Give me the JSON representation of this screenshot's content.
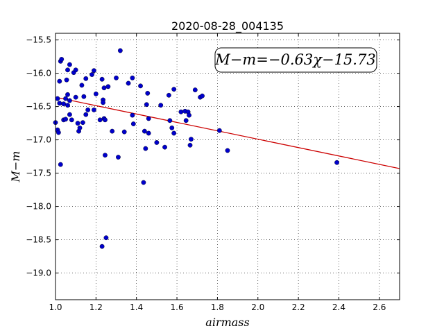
{
  "chart_data": {
    "type": "scatter",
    "title": "2020-08-28_004135",
    "xlabel": "airmass",
    "ylabel": "M−m",
    "xlim": [
      1.0,
      2.7
    ],
    "ylim": [
      -19.4,
      -15.4
    ],
    "y_inverted": true,
    "grid": true,
    "xticks": [
      1.0,
      1.2,
      1.4,
      1.6,
      1.8,
      2.0,
      2.2,
      2.4,
      2.6
    ],
    "xtick_labels": [
      "1.0",
      "1.2",
      "1.4",
      "1.6",
      "1.8",
      "2.0",
      "2.2",
      "2.4",
      "2.6"
    ],
    "yticks": [
      -15.5,
      -16.0,
      -16.5,
      -17.0,
      -17.5,
      -18.0,
      -18.5,
      -19.0
    ],
    "ytick_labels": [
      "−15.5",
      "−16.0",
      "−16.5",
      "−17.0",
      "−17.5",
      "−18.0",
      "−18.5",
      "−19.0"
    ],
    "annotation": "M−m=−0.63χ−15.73",
    "fit": {
      "slope": -0.63,
      "intercept": -15.73,
      "x_range": [
        1.0,
        2.7
      ],
      "color": "#cc0000"
    },
    "marker_color": "#0000cc",
    "series": [
      {
        "points": [
          [
            1.0,
            -16.74
          ],
          [
            1.01,
            -16.85
          ],
          [
            1.01,
            -16.38
          ],
          [
            1.015,
            -16.89
          ],
          [
            1.02,
            -16.12
          ],
          [
            1.02,
            -16.45
          ],
          [
            1.025,
            -15.82
          ],
          [
            1.03,
            -15.79
          ],
          [
            1.025,
            -17.37
          ],
          [
            1.04,
            -16.46
          ],
          [
            1.04,
            -16.7
          ],
          [
            1.05,
            -16.38
          ],
          [
            1.05,
            -16.69
          ],
          [
            1.055,
            -16.1
          ],
          [
            1.06,
            -15.95
          ],
          [
            1.06,
            -16.48
          ],
          [
            1.06,
            -16.32
          ],
          [
            1.07,
            -15.87
          ],
          [
            1.07,
            -16.62
          ],
          [
            1.07,
            -16.41
          ],
          [
            1.08,
            -16.7
          ],
          [
            1.09,
            -15.99
          ],
          [
            1.1,
            -15.95
          ],
          [
            1.1,
            -16.36
          ],
          [
            1.11,
            -16.75
          ],
          [
            1.115,
            -16.87
          ],
          [
            1.12,
            -16.82
          ],
          [
            1.13,
            -16.18
          ],
          [
            1.135,
            -16.74
          ],
          [
            1.14,
            -16.35
          ],
          [
            1.15,
            -16.62
          ],
          [
            1.15,
            -16.08
          ],
          [
            1.16,
            -16.55
          ],
          [
            1.18,
            -16.02
          ],
          [
            1.19,
            -15.96
          ],
          [
            1.19,
            -16.55
          ],
          [
            1.2,
            -16.31
          ],
          [
            1.22,
            -16.7
          ],
          [
            1.23,
            -16.09
          ],
          [
            1.235,
            -16.4
          ],
          [
            1.235,
            -16.44
          ],
          [
            1.24,
            -16.22
          ],
          [
            1.24,
            -16.68
          ],
          [
            1.245,
            -16.7
          ],
          [
            1.245,
            -17.23
          ],
          [
            1.25,
            -18.47
          ],
          [
            1.23,
            -18.6
          ],
          [
            1.26,
            -16.2
          ],
          [
            1.28,
            -16.87
          ],
          [
            1.3,
            -16.07
          ],
          [
            1.31,
            -17.26
          ],
          [
            1.32,
            -15.66
          ],
          [
            1.34,
            -16.88
          ],
          [
            1.36,
            -16.15
          ],
          [
            1.38,
            -16.07
          ],
          [
            1.38,
            -16.63
          ],
          [
            1.385,
            -16.76
          ],
          [
            1.42,
            -16.19
          ],
          [
            1.435,
            -17.64
          ],
          [
            1.44,
            -16.87
          ],
          [
            1.445,
            -17.13
          ],
          [
            1.45,
            -16.47
          ],
          [
            1.455,
            -16.3
          ],
          [
            1.46,
            -16.68
          ],
          [
            1.46,
            -16.9
          ],
          [
            1.5,
            -17.04
          ],
          [
            1.52,
            -16.48
          ],
          [
            1.54,
            -17.11
          ],
          [
            1.56,
            -16.33
          ],
          [
            1.565,
            -16.71
          ],
          [
            1.575,
            -16.82
          ],
          [
            1.585,
            -16.24
          ],
          [
            1.585,
            -16.9
          ],
          [
            1.62,
            -16.58
          ],
          [
            1.64,
            -16.57
          ],
          [
            1.645,
            -16.71
          ],
          [
            1.655,
            -16.58
          ],
          [
            1.66,
            -16.63
          ],
          [
            1.665,
            -17.08
          ],
          [
            1.67,
            -16.99
          ],
          [
            1.69,
            -16.25
          ],
          [
            1.715,
            -16.36
          ],
          [
            1.725,
            -16.34
          ],
          [
            1.81,
            -16.86
          ],
          [
            1.85,
            -17.16
          ],
          [
            2.39,
            -17.34
          ]
        ]
      }
    ]
  }
}
